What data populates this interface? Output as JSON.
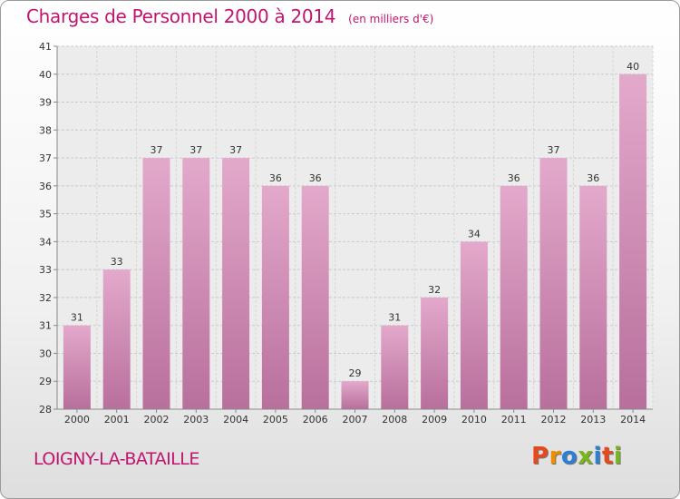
{
  "chart_data": {
    "type": "bar",
    "title": "Charges de Personnel 2000 à 2014",
    "subtitle": "(en milliers d'€)",
    "categories": [
      "2000",
      "2001",
      "2002",
      "2003",
      "2004",
      "2005",
      "2006",
      "2007",
      "2008",
      "2009",
      "2010",
      "2011",
      "2012",
      "2013",
      "2014"
    ],
    "values": [
      31,
      33,
      37,
      37,
      37,
      36,
      36,
      29,
      31,
      32,
      34,
      36,
      37,
      36,
      40
    ],
    "ylim": [
      28,
      41
    ],
    "yticks": [
      28,
      29,
      30,
      31,
      32,
      33,
      34,
      35,
      36,
      37,
      38,
      39,
      40,
      41
    ],
    "grid": true,
    "bar_color": "#d48bb4",
    "accent_color": "#c0156e"
  },
  "commune": "LOIGNY-LA-BATAILLE",
  "logo": {
    "text": "Proxiti",
    "colors": [
      "#e8481e",
      "#f08c00",
      "#2d7fd3",
      "#7ab51d",
      "#2d7fd3",
      "#e8481e",
      "#7ab51d"
    ]
  }
}
